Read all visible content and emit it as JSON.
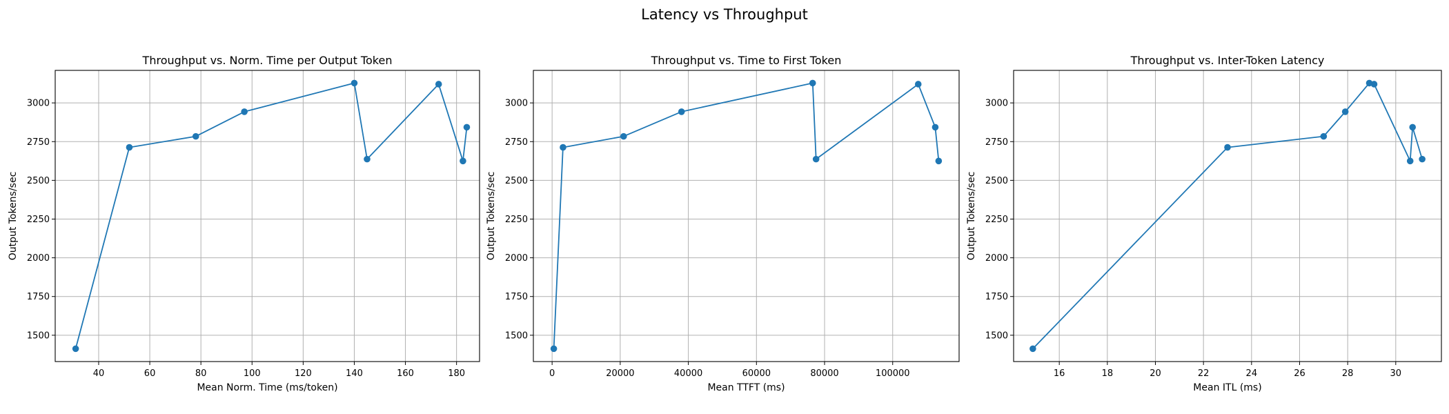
{
  "figure": {
    "suptitle": "Latency vs Throughput"
  },
  "colors": {
    "series": "#1f77b4",
    "grid": "#b0b0b0"
  },
  "chart_data": [
    {
      "type": "line",
      "title": "Throughput vs. Norm. Time per Output Token",
      "xlabel": "Mean Norm. Time (ms/token)",
      "ylabel": "Output Tokens/sec",
      "grid": true,
      "xlim": [
        23,
        189
      ],
      "ylim": [
        1330,
        3210
      ],
      "xticks": [
        40,
        60,
        80,
        100,
        120,
        140,
        160,
        180
      ],
      "xtick_labels": [
        "40",
        "60",
        "80",
        "100",
        "120",
        "140",
        "160",
        "180"
      ],
      "yticks": [
        1500,
        1750,
        2000,
        2250,
        2500,
        2750,
        3000
      ],
      "ytick_labels": [
        "1500",
        "1750",
        "2000",
        "2250",
        "2500",
        "2750",
        "3000"
      ],
      "x": [
        31,
        52,
        78,
        97,
        140,
        145,
        173,
        182.5,
        184
      ],
      "y": [
        1413,
        2713,
        2784,
        2943,
        3128,
        2637,
        3121,
        2625,
        2843
      ]
    },
    {
      "type": "line",
      "title": "Throughput vs. Time to First Token",
      "xlabel": "Mean TTFT (ms)",
      "ylabel": "Output Tokens/sec",
      "grid": true,
      "xlim": [
        -5500,
        119500
      ],
      "ylim": [
        1330,
        3210
      ],
      "xticks": [
        0,
        20000,
        40000,
        60000,
        80000,
        100000
      ],
      "xtick_labels": [
        "0",
        "20000",
        "40000",
        "60000",
        "80000",
        "100000"
      ],
      "yticks": [
        1500,
        1750,
        2000,
        2250,
        2500,
        2750,
        3000
      ],
      "ytick_labels": [
        "1500",
        "1750",
        "2000",
        "2250",
        "2500",
        "2750",
        "3000"
      ],
      "x": [
        500,
        3200,
        21000,
        38000,
        76500,
        77500,
        107500,
        112500,
        113500
      ],
      "y": [
        1413,
        2713,
        2784,
        2943,
        3128,
        2637,
        3121,
        2843,
        2625
      ]
    },
    {
      "type": "line",
      "title": "Throughput vs. Inter-Token Latency",
      "xlabel": "Mean ITL (ms)",
      "ylabel": "Output Tokens/sec",
      "grid": true,
      "xlim": [
        14.1,
        31.9
      ],
      "ylim": [
        1330,
        3210
      ],
      "xticks": [
        16,
        18,
        20,
        22,
        24,
        26,
        28,
        30
      ],
      "xtick_labels": [
        "16",
        "18",
        "20",
        "22",
        "24",
        "26",
        "28",
        "30"
      ],
      "yticks": [
        1500,
        1750,
        2000,
        2250,
        2500,
        2750,
        3000
      ],
      "ytick_labels": [
        "1500",
        "1750",
        "2000",
        "2250",
        "2500",
        "2750",
        "3000"
      ],
      "x": [
        14.9,
        23,
        27,
        27.9,
        28.9,
        29.1,
        30.6,
        30.7,
        31.1
      ],
      "y": [
        1413,
        2713,
        2784,
        2943,
        3128,
        3121,
        2625,
        2843,
        2637
      ]
    }
  ]
}
